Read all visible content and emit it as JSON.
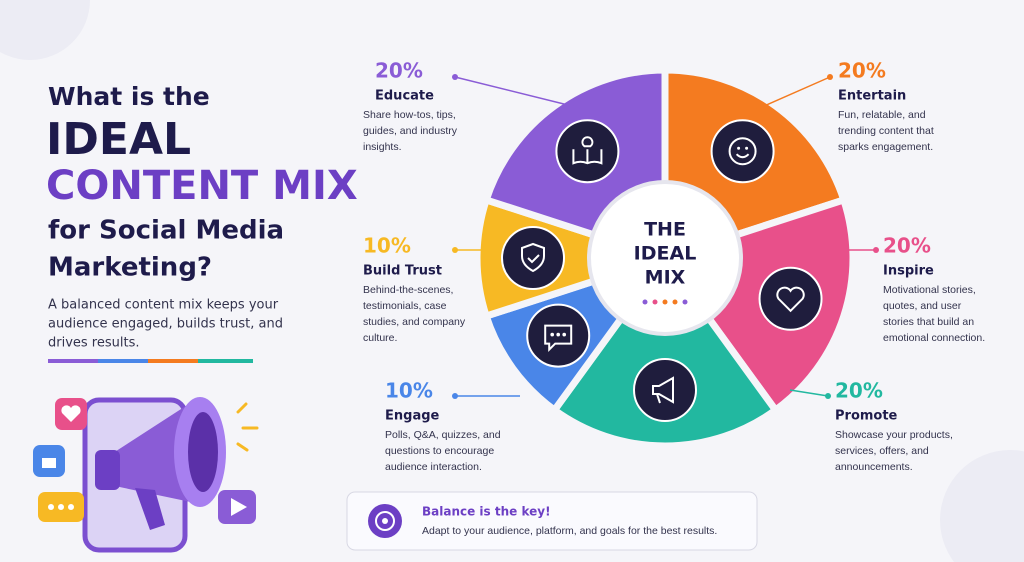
{
  "chart_data": {
    "type": "pie",
    "title": [
      "What is the",
      "IDEAL",
      "CONTENT MIX",
      "for Social Media",
      "Marketing?"
    ],
    "subtitle": [
      "A balanced content mix keeps your",
      "audience engaged, builds trust, and",
      "drives results."
    ],
    "center_label": [
      "THE",
      "IDEAL",
      "MIX"
    ],
    "categories": [
      "Entertain",
      "Inspire",
      "Promote",
      "Engage",
      "Build Trust",
      "Educate"
    ],
    "values": [
      20,
      20,
      20,
      10,
      10,
      20
    ],
    "value_labels": [
      "20%",
      "20%",
      "20%",
      "10%",
      "10%",
      "20%"
    ],
    "colors": [
      "#f47b20",
      "#e8508a",
      "#22b8a0",
      "#4a86e8",
      "#f7b924",
      "#8a5cd6"
    ],
    "descriptions": [
      [
        "Fun, relatable, and",
        "trending content that",
        "sparks engagement."
      ],
      [
        "Motivational stories,",
        "quotes, and user",
        "stories that build an",
        "emotional connection."
      ],
      [
        "Showcase your products,",
        "services, offers, and",
        "announcements."
      ],
      [
        "Polls, Q&A, quizzes, and",
        "questions to encourage",
        "audience interaction."
      ],
      [
        "Behind-the-scenes,",
        "testimonials, case",
        "studies, and company",
        "culture."
      ],
      [
        "Share how-tos, tips,",
        "guides, and industry",
        "insights."
      ]
    ],
    "callout": {
      "title": "Balance is the key!",
      "text": "Adapt to your audience, platform, and goals for the best results."
    }
  }
}
